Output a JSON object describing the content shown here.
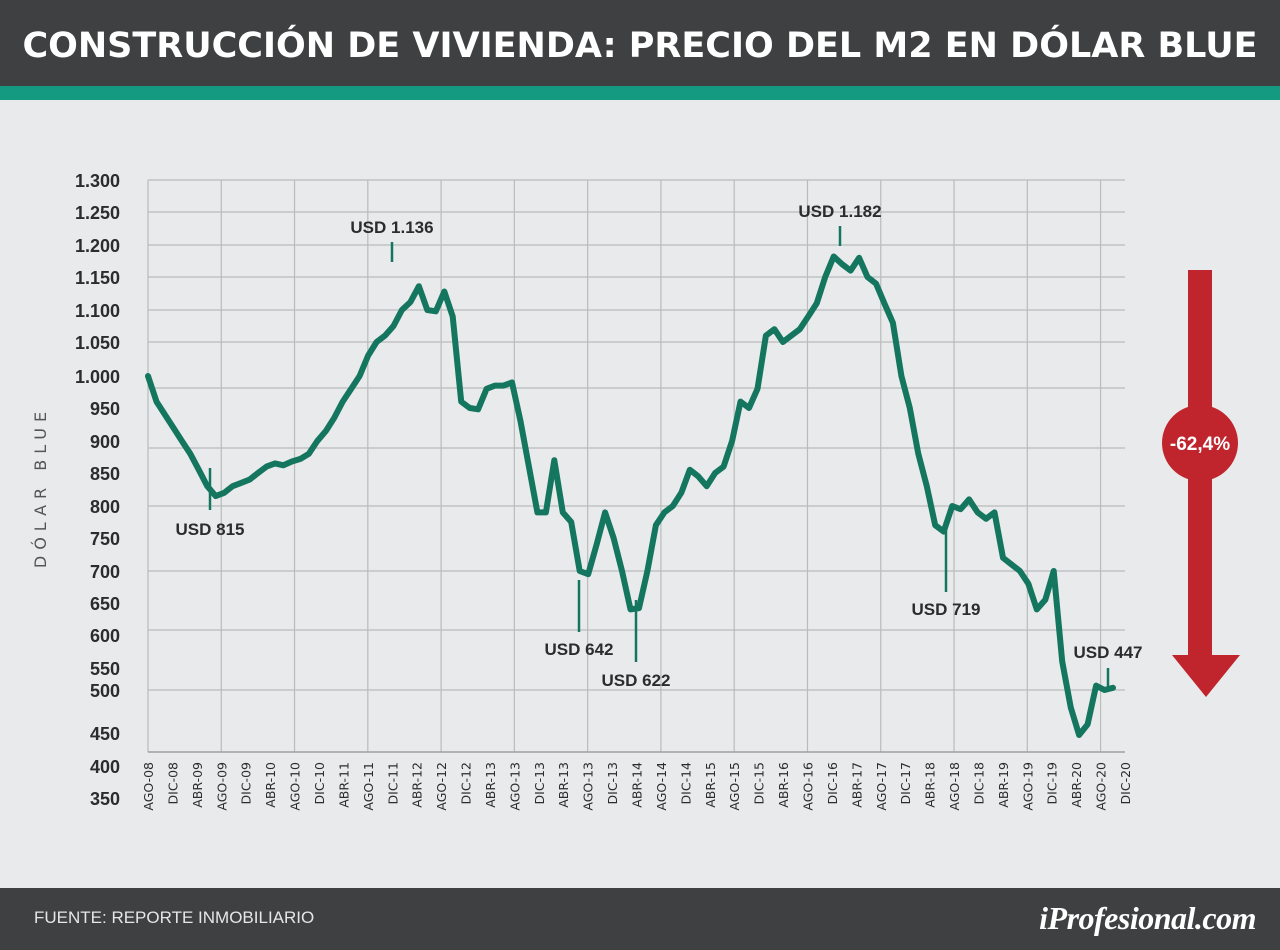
{
  "header": {
    "title": "CONSTRUCCIÓN DE VIVIENDA: PRECIO DEL M2 EN DÓLAR BLUE"
  },
  "footer": {
    "source": "FUENTE:  REPORTE INMOBILIARIO",
    "brand": "iProfesional.com"
  },
  "colors": {
    "line": "#14765f",
    "arrow": "#c0242c",
    "grid": "#b9bbbc",
    "header_bg": "#3f4041",
    "accent_stripe": "#159a82",
    "background": "#e9eaeb"
  },
  "chart_data": {
    "type": "line",
    "title": "CONSTRUCCIÓN DE VIVIENDA: PRECIO DEL M2 EN DÓLAR BLUE",
    "ylabel": "DÓLAR BLUE",
    "xlabel": "",
    "grid": true,
    "y_ticks": [
      "1.300",
      "1.250",
      "1.200",
      "1.150",
      "1.100",
      "1.050",
      "1.000",
      "950",
      "900",
      "850",
      "800",
      "750",
      "700",
      "650",
      "600",
      "550",
      "500",
      "450",
      "400",
      "350"
    ],
    "x_ticks": [
      "AGO-08",
      "DIC-08",
      "ABR-09",
      "AGO-09",
      "DIC-09",
      "ABR-10",
      "AGO-10",
      "DIC-10",
      "ABR-11",
      "AGO-11",
      "DIC-11",
      "ABR-12",
      "AGO-12",
      "DIC-12",
      "ABR-13",
      "AGO-13",
      "DIC-13",
      "ABR-13",
      "AGO-13",
      "DIC-13",
      "ABR-14",
      "AGO-14",
      "DIC-14",
      "ABR-15",
      "AGO-15",
      "DIC-15",
      "ABR-16",
      "AGO-16",
      "DIC-16",
      "ABR-17",
      "AGO-17",
      "DIC-17",
      "ABR-18",
      "AGO-18",
      "DIC-18",
      "ABR-19",
      "AGO-19",
      "DIC-19",
      "ABR-20",
      "AGO-20",
      "DIC-20"
    ],
    "series": [
      {
        "values": [
          1000,
          960,
          940,
          920,
          900,
          880,
          855,
          830,
          815,
          820,
          830,
          835,
          840,
          850,
          860,
          865,
          862,
          868,
          872,
          880,
          900,
          915,
          935,
          960,
          980,
          1000,
          1030,
          1050,
          1060,
          1075,
          1100,
          1112,
          1136,
          1100,
          1098,
          1128,
          1090,
          960,
          950,
          948,
          980,
          985,
          985,
          990,
          930,
          860,
          790,
          790,
          870,
          790,
          775,
          700,
          695,
          740,
          790,
          750,
          700,
          640,
          642,
          700,
          770,
          790,
          800,
          820,
          855,
          845,
          830,
          850,
          860,
          900,
          960,
          950,
          980,
          1060,
          1070,
          1050,
          1060,
          1070,
          1090,
          1110,
          1150,
          1182,
          1170,
          1160,
          1180,
          1150,
          1140,
          1110,
          1080,
          1000,
          950,
          880,
          830,
          770,
          760,
          800,
          795,
          810,
          790,
          780,
          790,
          720,
          710,
          700,
          680,
          640,
          655,
          700,
          560,
          480,
          447,
          460,
          510,
          500,
          505
        ]
      }
    ],
    "annotations": [
      {
        "label": "USD 815",
        "x": "ABR-09",
        "value": 815
      },
      {
        "label": "USD 1.136",
        "x": "AGO-11",
        "value": 1136
      },
      {
        "label": "USD 642",
        "x": "ABR-13",
        "value": 642
      },
      {
        "label": "USD 622",
        "x": "DIC-13",
        "value": 622
      },
      {
        "label": "USD 1.182",
        "x": "DIC-16",
        "value": 1182
      },
      {
        "label": "USD 719",
        "x": "AGO-18",
        "value": 719
      },
      {
        "label": "USD 447",
        "x": "AGO-20",
        "value": 447
      }
    ],
    "change_badge": "-62,4%"
  }
}
